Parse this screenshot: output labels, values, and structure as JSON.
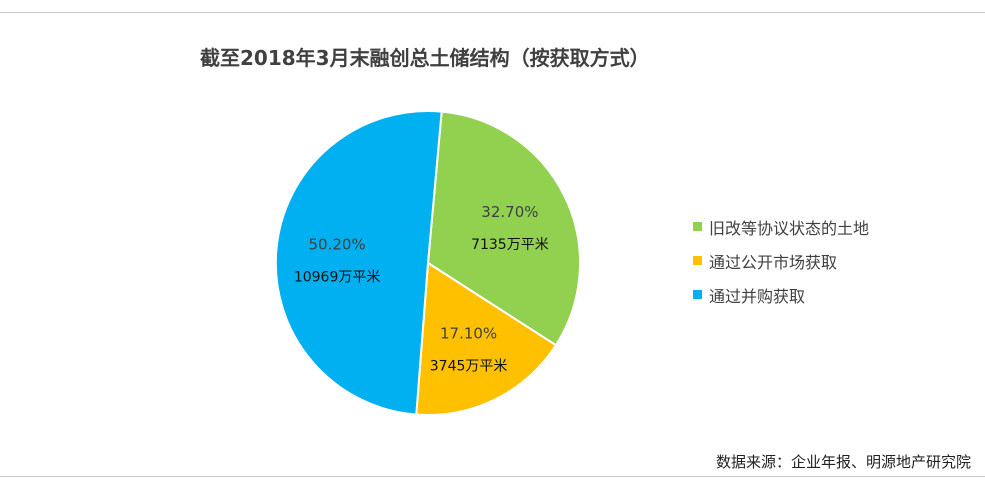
{
  "chart_data": {
    "type": "pie",
    "title": "截至2018年3月末融创总土储结构（按获取方式）",
    "slices": [
      {
        "name": "旧改等协议状态的土地",
        "percent_label": "32.70%",
        "value_label": "7135万平米",
        "value": 7135,
        "color": "#92d050"
      },
      {
        "name": "通过公开市场获取",
        "percent_label": "17.10%",
        "value_label": "3745万平米",
        "value": 3745,
        "color": "#ffc000"
      },
      {
        "name": "通过并购获取",
        "percent_label": "50.20%",
        "value_label": "10969万平米",
        "value": 10969,
        "color": "#00b0f0"
      }
    ],
    "legend": "right"
  },
  "source": "数据来源：企业年报、明源地产研究院"
}
